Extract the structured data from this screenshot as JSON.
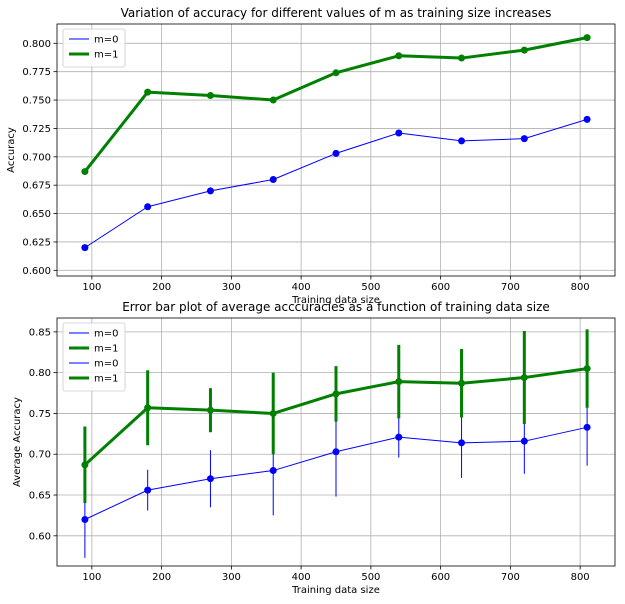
{
  "chart_data": [
    {
      "type": "line",
      "title": "Variation of accuracy for different values of m as training size increases",
      "xlabel": "Training data size",
      "ylabel": "Accuracy",
      "xlim": [
        50,
        850
      ],
      "ylim": [
        0.595,
        0.817
      ],
      "xticks": [
        100,
        200,
        300,
        400,
        500,
        600,
        700,
        800
      ],
      "yticks": [
        0.6,
        0.625,
        0.65,
        0.675,
        0.7,
        0.725,
        0.75,
        0.775,
        0.8
      ],
      "ytick_labels": [
        "0.600",
        "0.625",
        "0.650",
        "0.675",
        "0.700",
        "0.725",
        "0.750",
        "0.775",
        "0.800"
      ],
      "grid": true,
      "legend_position": "top-left",
      "x": [
        90,
        180,
        270,
        360,
        450,
        540,
        630,
        720,
        810
      ],
      "series": [
        {
          "name": "m=0",
          "color": "#0000ff",
          "width": 1,
          "values": [
            0.62,
            0.656,
            0.67,
            0.68,
            0.703,
            0.721,
            0.714,
            0.716,
            0.733
          ]
        },
        {
          "name": "m=1",
          "color": "#008000",
          "width": 3,
          "values": [
            0.687,
            0.757,
            0.754,
            0.75,
            0.774,
            0.789,
            0.787,
            0.794,
            0.805
          ]
        }
      ]
    },
    {
      "type": "line",
      "title": "Error bar plot of average acccuracies as a function of training data size",
      "xlabel": "Training data size",
      "ylabel": "Average Accuracy",
      "xlim": [
        50,
        850
      ],
      "ylim": [
        0.563,
        0.867
      ],
      "xticks": [
        100,
        200,
        300,
        400,
        500,
        600,
        700,
        800
      ],
      "yticks": [
        0.6,
        0.65,
        0.7,
        0.75,
        0.8,
        0.85
      ],
      "ytick_labels": [
        "0.60",
        "0.65",
        "0.70",
        "0.75",
        "0.80",
        "0.85"
      ],
      "grid": true,
      "legend_position": "top-left",
      "legend_entries": [
        "m=0",
        "m=1",
        "m=0",
        "m=1"
      ],
      "x": [
        90,
        180,
        270,
        360,
        450,
        540,
        630,
        720,
        810
      ],
      "series": [
        {
          "name": "m=0",
          "color": "#0000ff",
          "width": 1,
          "values": [
            0.62,
            0.656,
            0.67,
            0.68,
            0.703,
            0.721,
            0.714,
            0.716,
            0.733
          ],
          "errors": [
            0.047,
            0.025,
            0.035,
            0.055,
            0.055,
            0.025,
            0.043,
            0.04,
            0.047
          ]
        },
        {
          "name": "m=1",
          "color": "#008000",
          "width": 3,
          "values": [
            0.687,
            0.757,
            0.754,
            0.75,
            0.774,
            0.789,
            0.787,
            0.794,
            0.805
          ],
          "errors": [
            0.047,
            0.046,
            0.027,
            0.05,
            0.034,
            0.045,
            0.042,
            0.057,
            0.048
          ]
        }
      ]
    }
  ]
}
